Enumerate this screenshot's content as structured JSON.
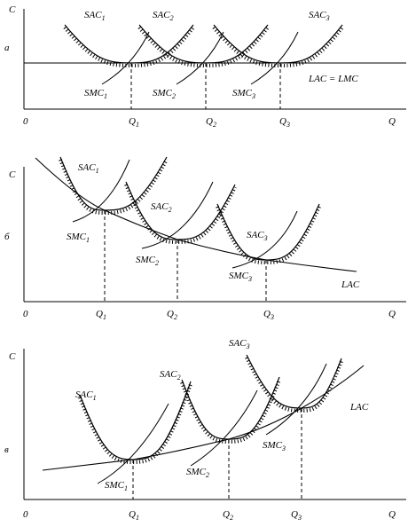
{
  "panels": [
    {
      "marker": "а",
      "y_axis": "C",
      "x_axis": "Q",
      "origin": "0",
      "q_labels": [
        {
          "text": "Q",
          "sub": "1"
        },
        {
          "text": "Q",
          "sub": "2"
        },
        {
          "text": "Q",
          "sub": "3"
        }
      ],
      "sac_labels": [
        {
          "text": "SAC",
          "sub": "1"
        },
        {
          "text": "SAC",
          "sub": "2"
        },
        {
          "text": "SAC",
          "sub": "3"
        }
      ],
      "smc_labels": [
        {
          "text": "SMC",
          "sub": "1"
        },
        {
          "text": "SMC",
          "sub": "2"
        },
        {
          "text": "SMC",
          "sub": "3"
        }
      ],
      "lac_label": "LAC = LMC"
    },
    {
      "marker": "б",
      "y_axis": "C",
      "x_axis": "Q",
      "origin": "0",
      "q_labels": [
        {
          "text": "Q",
          "sub": "1"
        },
        {
          "text": "Q",
          "sub": "2"
        },
        {
          "text": "Q",
          "sub": "3"
        }
      ],
      "sac_labels": [
        {
          "text": "SAC",
          "sub": "1"
        },
        {
          "text": "SAC",
          "sub": "2"
        },
        {
          "text": "SAC",
          "sub": "3"
        }
      ],
      "smc_labels": [
        {
          "text": "SMC",
          "sub": "1"
        },
        {
          "text": "SMC",
          "sub": "2"
        },
        {
          "text": "SMC",
          "sub": "3"
        }
      ],
      "lac_label": "LAC"
    },
    {
      "marker": "в",
      "y_axis": "C",
      "x_axis": "Q",
      "origin": "0",
      "q_labels": [
        {
          "text": "Q",
          "sub": "1"
        },
        {
          "text": "Q",
          "sub": "2"
        },
        {
          "text": "Q",
          "sub": "3"
        }
      ],
      "sac_labels": [
        {
          "text": "SAC",
          "sub": "1"
        },
        {
          "text": "SAC",
          "sub": "2"
        },
        {
          "text": "SAC",
          "sub": "3"
        }
      ],
      "smc_labels": [
        {
          "text": "SMC",
          "sub": "1"
        },
        {
          "text": "SMC",
          "sub": "2"
        },
        {
          "text": "SMC",
          "sub": "3"
        }
      ],
      "lac_label": "LAC"
    }
  ]
}
